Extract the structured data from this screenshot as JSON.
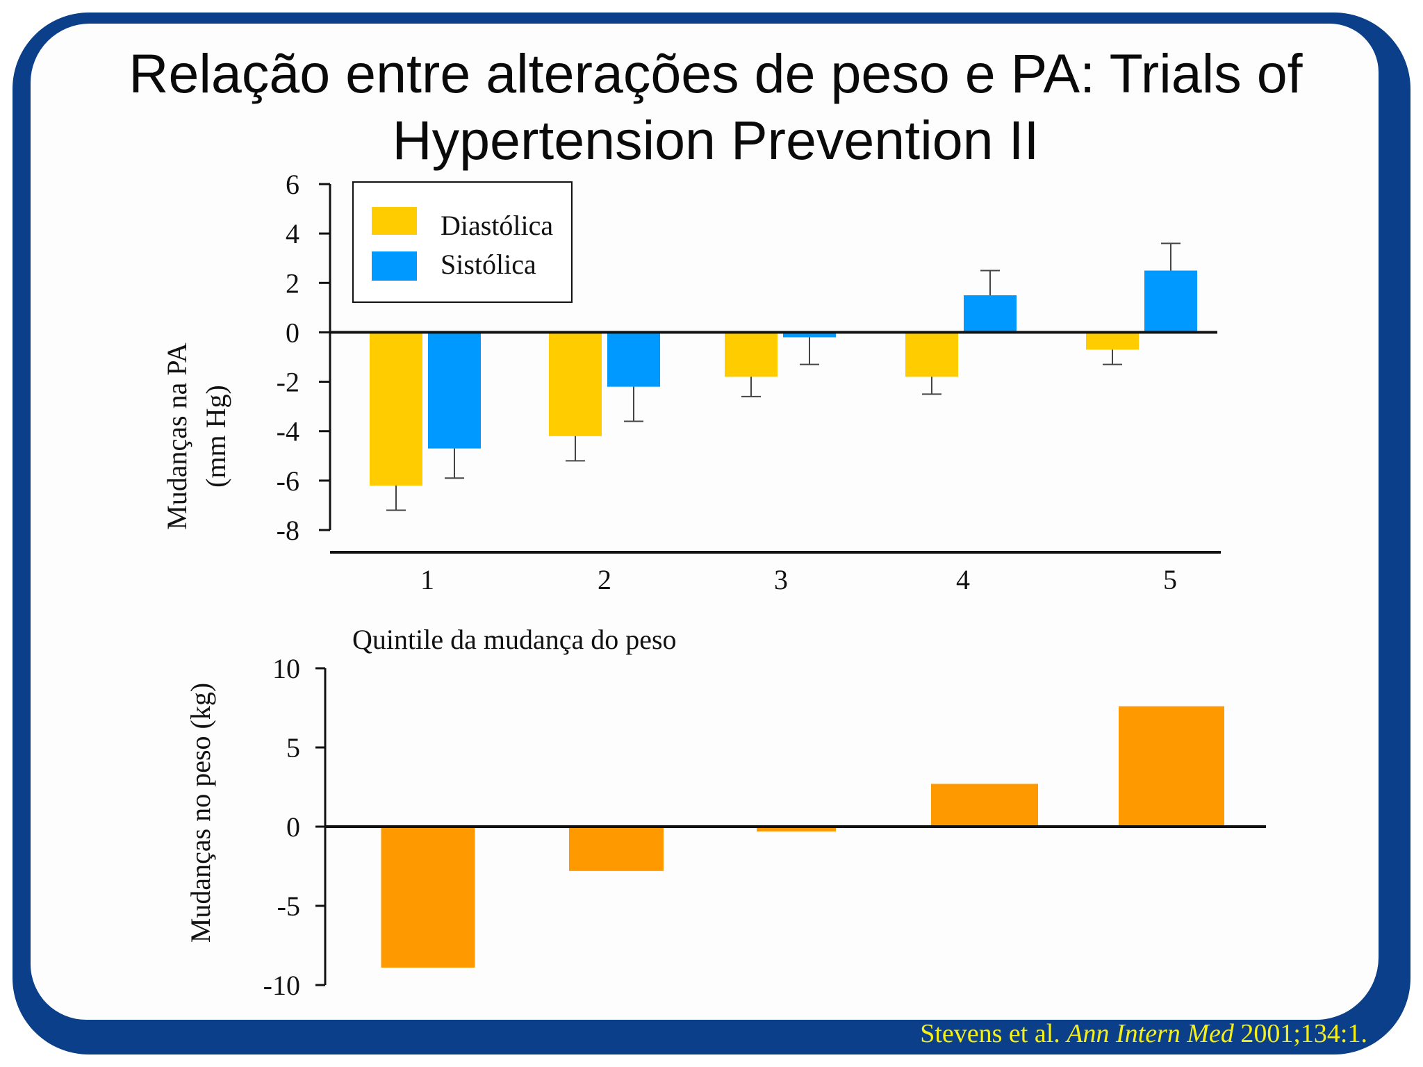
{
  "slide": {
    "title": "Relação entre alterações de peso e PA:  Trials of Hypertension Prevention II",
    "citation": {
      "authors": "Stevens et al. ",
      "journal": "Ann Intern Med",
      "ref": " 2001;134:1."
    }
  },
  "colors": {
    "frame": "#0c3f8a",
    "diastolic": "#ffcc00",
    "systolic": "#0099ff",
    "weight": "#ff9900",
    "citation": "#f4ef1a"
  },
  "chart_data": [
    {
      "type": "bar",
      "categories": [
        "1",
        "2",
        "3",
        "4",
        "5"
      ],
      "series": [
        {
          "name": "Diastólica",
          "values": [
            -6.2,
            -4.2,
            -1.8,
            -1.8,
            -0.7
          ],
          "errors": [
            1.0,
            1.0,
            0.8,
            0.7,
            0.6
          ]
        },
        {
          "name": "Sistólica",
          "values": [
            -4.7,
            -2.2,
            -0.2,
            1.5,
            2.5
          ],
          "errors": [
            1.2,
            1.4,
            1.1,
            1.0,
            1.1
          ]
        }
      ],
      "ylabel": [
        "Mudanças na PA",
        "(mm Hg)"
      ],
      "xlabel": "Quintile da mudança do peso",
      "ylim": [
        -8,
        6
      ],
      "yticks": [
        6,
        4,
        2,
        0,
        -2,
        -4,
        -6,
        -8
      ],
      "legend": "top-left",
      "grid": false
    },
    {
      "type": "bar",
      "categories": [
        "1",
        "2",
        "3",
        "4",
        "5"
      ],
      "series": [
        {
          "values": [
            -8.9,
            -2.8,
            -0.3,
            2.7,
            7.6
          ]
        }
      ],
      "ylabel": "Mudanças no peso (kg)",
      "ylim": [
        -10,
        10
      ],
      "yticks": [
        10,
        5,
        0,
        -5,
        -10
      ],
      "grid": false
    }
  ]
}
